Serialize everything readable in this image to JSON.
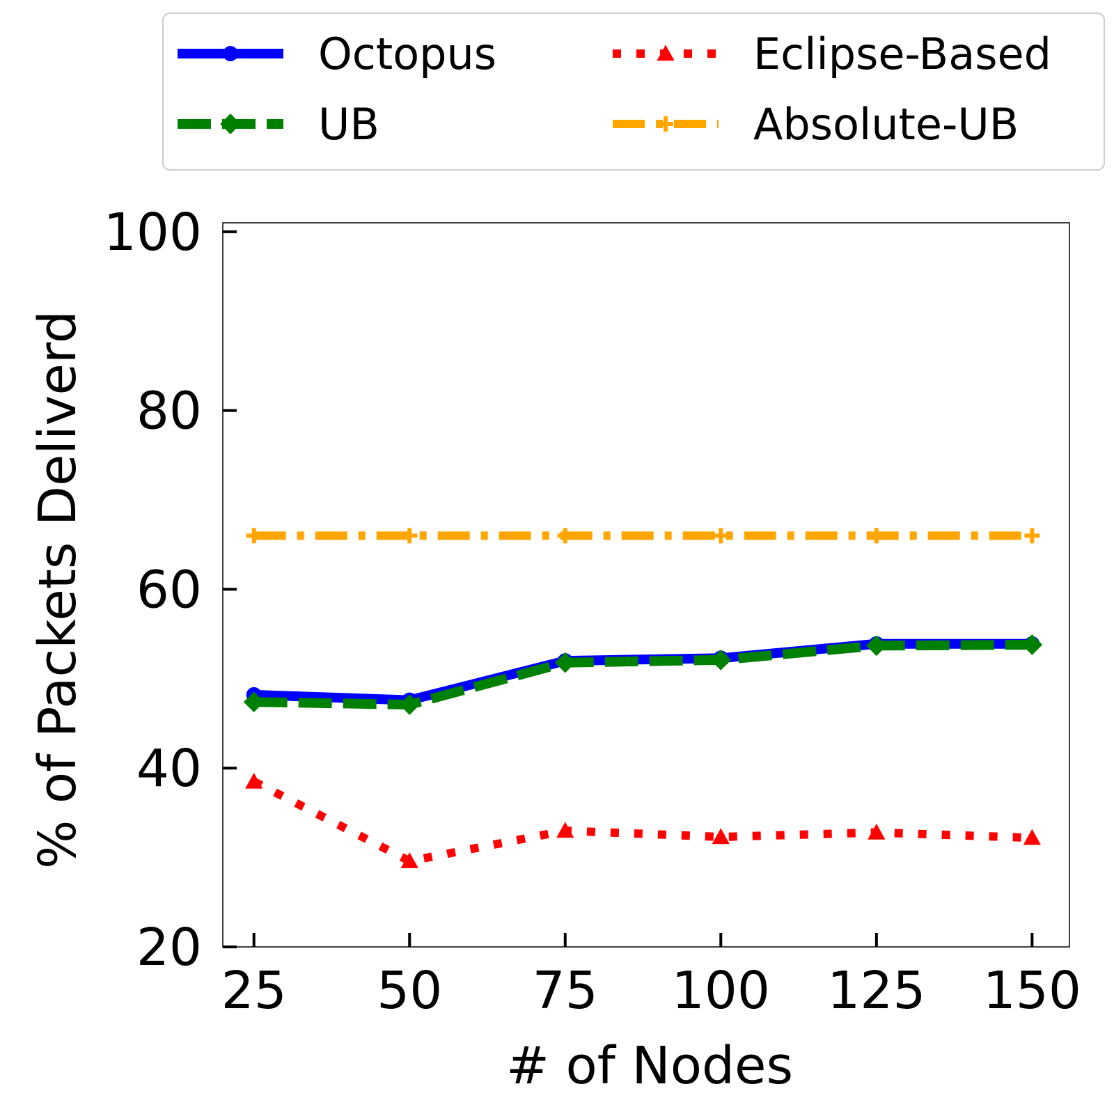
{
  "chart_data": {
    "type": "line",
    "title": "",
    "xlabel": "# of Nodes",
    "ylabel": "% of Packets Deliverd",
    "x": [
      25,
      50,
      75,
      100,
      125,
      150
    ],
    "xticks": [
      "25",
      "50",
      "75",
      "100",
      "125",
      "150"
    ],
    "yticks": [
      "20",
      "40",
      "60",
      "80",
      "100"
    ],
    "ylim": [
      20,
      101
    ],
    "grid": false,
    "legend_position": "top, above plot, 2 columns",
    "series": [
      {
        "name": "Octopus",
        "color": "#0000ff",
        "style": "solid",
        "marker": "circle",
        "values": [
          48.2,
          47.6,
          52.0,
          52.3,
          53.9,
          53.9
        ]
      },
      {
        "name": "UB",
        "color": "#008000",
        "style": "dashed",
        "marker": "diamond",
        "values": [
          47.4,
          47.1,
          51.8,
          52.1,
          53.7,
          53.8
        ]
      },
      {
        "name": "Eclipse-Based",
        "color": "#ff0000",
        "style": "dotted",
        "marker": "triangle",
        "values": [
          38.5,
          29.6,
          33.0,
          32.3,
          32.8,
          32.2
        ]
      },
      {
        "name": "Absolute-UB",
        "color": "#ffa500",
        "style": "dashdot",
        "marker": "plus",
        "values": [
          66.0,
          66.0,
          66.0,
          66.0,
          66.0,
          66.0
        ]
      }
    ]
  }
}
